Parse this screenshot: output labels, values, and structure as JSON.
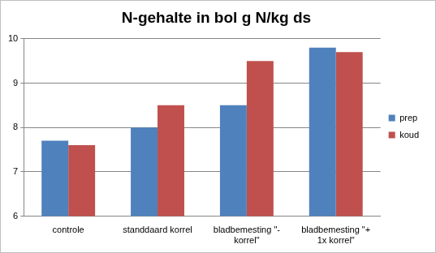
{
  "chart_data": {
    "type": "bar",
    "title": "N-gehalte in bol g N/kg ds",
    "categories": [
      "controle",
      "standdaard korrel",
      "bladbemesting \"- korrel\"",
      "bladbemesting \"+ 1x korrel\""
    ],
    "series": [
      {
        "name": "prep",
        "color": "#4f81bd",
        "values": [
          7.7,
          8.0,
          8.5,
          9.8
        ]
      },
      {
        "name": "koud",
        "color": "#c0504d",
        "values": [
          7.6,
          8.5,
          9.5,
          9.7
        ]
      }
    ],
    "ylim": [
      6,
      10
    ],
    "yticks": [
      6,
      7,
      8,
      9,
      10
    ],
    "grid": true,
    "legend": "right"
  }
}
